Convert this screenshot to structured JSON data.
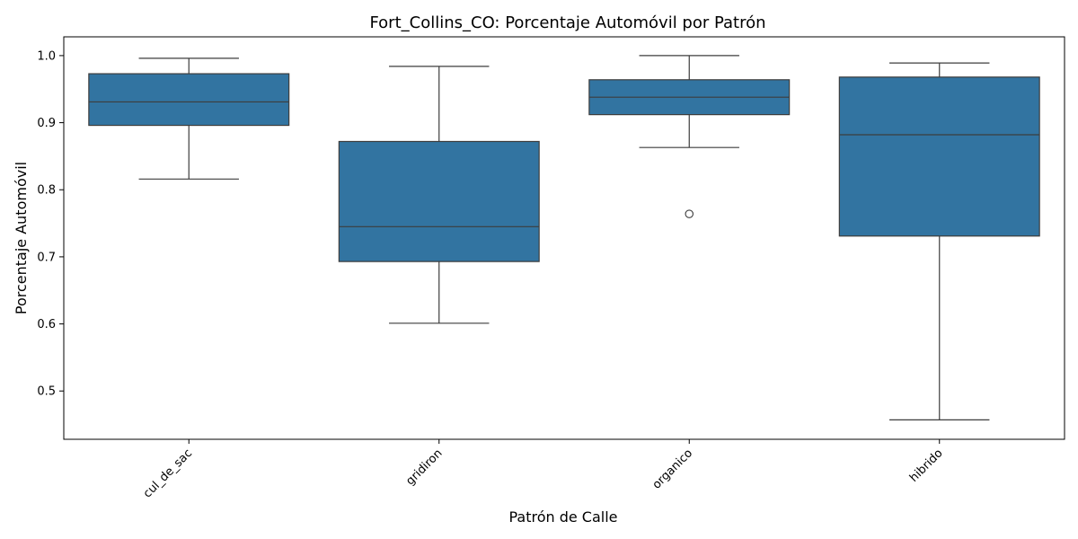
{
  "chart_data": {
    "type": "box",
    "title": "Fort_Collins_CO: Porcentaje Automóvil por Patrón",
    "xlabel": "Patrón de Calle",
    "ylabel": "Porcentaje Automóvil",
    "ylim": [
      0.428,
      1.028
    ],
    "yticks": [
      "0.5",
      "0.6",
      "0.7",
      "0.8",
      "0.9",
      "1.0"
    ],
    "box_color": "#3274a1",
    "categories": [
      "cul_de_sac",
      "gridiron",
      "organico",
      "hibrido"
    ],
    "boxes": [
      {
        "category": "cul_de_sac",
        "whisker_low": 0.816,
        "q1": 0.896,
        "median": 0.931,
        "q3": 0.973,
        "whisker_high": 0.996,
        "outliers": []
      },
      {
        "category": "gridiron",
        "whisker_low": 0.601,
        "q1": 0.693,
        "median": 0.745,
        "q3": 0.872,
        "whisker_high": 0.984,
        "outliers": []
      },
      {
        "category": "organico",
        "whisker_low": 0.863,
        "q1": 0.912,
        "median": 0.938,
        "q3": 0.964,
        "whisker_high": 1.0,
        "outliers": [
          0.764
        ]
      },
      {
        "category": "hibrido",
        "whisker_low": 0.457,
        "q1": 0.731,
        "median": 0.882,
        "q3": 0.968,
        "whisker_high": 0.989,
        "outliers": []
      }
    ]
  }
}
